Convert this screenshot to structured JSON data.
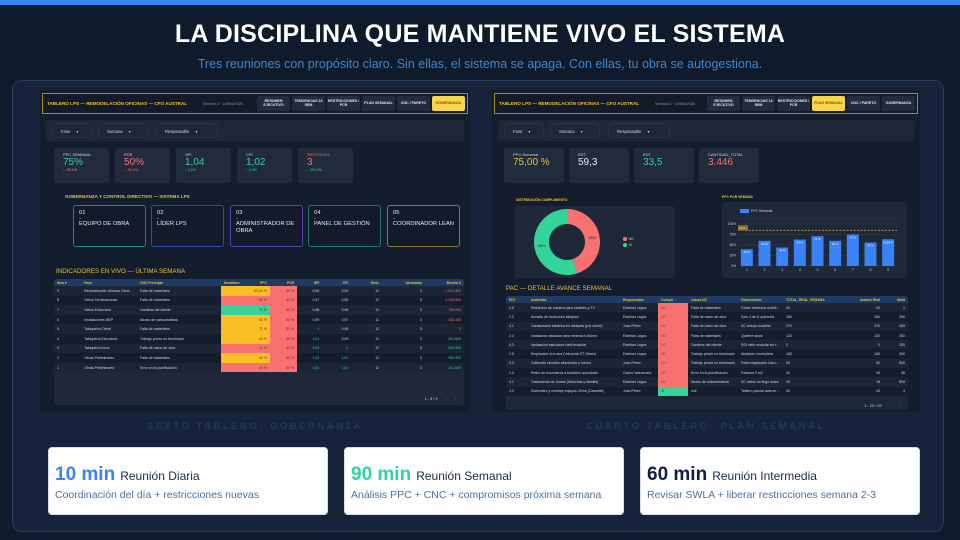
{
  "colors": {
    "accent": "#3b82f6",
    "gold": "#e8c33a",
    "green": "#34d399",
    "red": "#f87171",
    "yellow": "#fbbf24",
    "navy": "#0f1f45"
  },
  "header": {
    "title": "LA DISCIPLINA QUE MANTIENE VIVO EL SISTEMA",
    "subtitle": "Tres reuniones con propósito claro. Sin ellas, el sistema se apaga. Con ellas, tu obra se autogestiona."
  },
  "left": {
    "caption": "SEXTO TABLERO: GOBERNANZA",
    "app_title": "TABLERO LPS — REMODELACIÓN OFICINAS — CFO AUSTRAL",
    "date": "Semana 3 · 16/Mar/2026",
    "tabs": [
      "RESUMEN EJECUTIVO",
      "TENDENCIAS 16 SEM",
      "RESTRICCIONES / PCR",
      "PLAN SEMANAL",
      "CNC / PARETO",
      "GOBERNANZA"
    ],
    "active_tab": 5,
    "filters": [
      "Fase",
      "Semana",
      "Responsable"
    ],
    "kpis": [
      {
        "label": "PPC SEMANAL",
        "value": "75%",
        "delta": "↓ -89.6%",
        "color": "#34d399",
        "dcolor": "#f87171"
      },
      {
        "label": "PCR",
        "value": "50%",
        "delta": "↓ -50.0%",
        "color": "#f87171",
        "dcolor": "#f87171"
      },
      {
        "label": "SPI",
        "value": "1,04",
        "delta": "↑ 4.0%",
        "color": "#34d399",
        "dcolor": "#34d399"
      },
      {
        "label": "CPI",
        "value": "1,02",
        "delta": "↑ 2.0%",
        "color": "#34d399",
        "dcolor": "#34d399"
      },
      {
        "label": "REST.ROJO",
        "value": "3",
        "delta": "↑ 200.0%",
        "color": "#f87171",
        "dcolor": "#34d399"
      }
    ],
    "gov_title": "GOBERNANZA Y CONTROL DIRECTIVO — SISTEMA LPS",
    "gov_boxes": [
      {
        "num": "01",
        "dash": "-",
        "label": "EQUIPO DE OBRA",
        "color": "#1f8a6e"
      },
      {
        "num": "02",
        "dash": "-",
        "label": "LÍDER LPS",
        "color": "#2a4da8"
      },
      {
        "num": "03",
        "dash": "-",
        "label": "ADMINISTRADOR DE OBRA",
        "color": "#5b3fa8"
      },
      {
        "num": "04",
        "dash": "-",
        "label": "PANEL DE GESTIÓN",
        "color": "#1f7a6a"
      },
      {
        "num": "05",
        "dash": "-",
        "label": "COORDINADOR LEAN",
        "color": "#8a7a3a"
      }
    ],
    "table_title": "INDICADORES EN VIVO — ÚLTIMA SEMANA",
    "columns": [
      "Item ▾",
      "Fase",
      "CNC Principal",
      "Semáforo",
      "PPC",
      "PCR",
      "SPI",
      "CPI",
      "Rest.",
      "Atrasadas",
      "Brecha $"
    ],
    "rows": [
      [
        "9",
        "Remodelación Oficinas Centr...",
        "Falta de materiales",
        "yellow",
        "63,64 %",
        "50 %",
        "0,96",
        "0,94",
        "12",
        "3",
        "-1.814.400"
      ],
      [
        "8",
        "Cielos Terminaciones",
        "Falta de materiales",
        "red",
        "56 %",
        "50 %",
        "0,97",
        "0,95",
        "12",
        "3",
        "-1.209.600"
      ],
      [
        "7",
        "Cielos Estructura",
        "Cambios del cliente",
        "green",
        "75 %",
        "50 %",
        "0,98",
        "0,96",
        "12",
        "3",
        "-705.600"
      ],
      [
        "6",
        "Instalaciones MEP",
        "Atraso de subcontratista",
        "yellow",
        "60 %",
        "50 %",
        "0,99",
        "0,97",
        "12",
        "3",
        "-302.400"
      ],
      [
        "5",
        "Tabiquería Cierre",
        "Falta de materiales",
        "yellow",
        "71 %",
        "50 %",
        "1",
        "0,98",
        "12",
        "3",
        "0"
      ],
      [
        "4",
        "Tabiquería Estructura",
        "Trabajo previo no terminado",
        "yellow",
        "63 %",
        "50 %",
        "1,01",
        "0,99",
        "12",
        "3",
        "201.600"
      ],
      [
        "3",
        "Tabiquería Inicio",
        "Falta de mano de obra",
        "red",
        "44 %",
        "50 %",
        "1,02",
        "1",
        "12",
        "3",
        "302.400"
      ],
      [
        "2",
        "Obras Preliminares",
        "Falta de materiales",
        "yellow",
        "60 %",
        "50 %",
        "1,03",
        "1,01",
        "12",
        "3",
        "302.400"
      ],
      [
        "1",
        "Obras Preliminares",
        "Error en la planificación",
        "red",
        "40 %",
        "50 %",
        "1,04",
        "1,02",
        "12",
        "3",
        "201.600"
      ]
    ],
    "pagination": "1 - 9 / 9"
  },
  "right": {
    "caption": "CUARTO TABLERO: PLAN SEMANAL",
    "app_title": "TABLERO LPS — REMODELACIÓN OFICINAS — CFO AUSTRAL",
    "date": "Semana 3 · 16/Mar/2026",
    "tabs": [
      "RESUMEN EJECUTIVO",
      "TENDENCIAS 16 SEM",
      "RESTRICCIONES / PCR",
      "PLAN SEMANAL",
      "CNC / PARETO",
      "GOBERNANZA"
    ],
    "active_tab": 3,
    "filters": [
      "Fase",
      "Semana",
      "Responsable"
    ],
    "kpis": [
      {
        "label": "PPC Semanal",
        "value": "75,00 %",
        "color": "#e8c33a"
      },
      {
        "label": "EDT",
        "value": "59,3",
        "color": "#e6eaf2"
      },
      {
        "label": "EDT",
        "value": "33,5",
        "color": "#34d399"
      },
      {
        "label": "CANTIDAD_TOTAL",
        "value": "3.446",
        "color": "#f87171"
      }
    ],
    "donut": {
      "title": "DISTRIBUCIÓN CUMPLIMIENTO",
      "slices": [
        {
          "label": "NO",
          "value": 45,
          "text": "45%",
          "color": "#f87171"
        },
        {
          "label": "SI",
          "value": 55,
          "text": "55%",
          "color": "#34d399"
        }
      ]
    },
    "bar_chart": {
      "title": "PPC POR SEMANA",
      "legend": "PPC Semanal",
      "categories": [
        "1",
        "2",
        "3",
        "4",
        "5",
        "6",
        "7",
        "8",
        "9"
      ],
      "values": [
        40,
        60,
        44,
        63,
        71,
        60,
        75,
        56,
        63.64
      ],
      "labels": [
        "40 %",
        "60 %",
        "44 %",
        "63 %",
        "71 %",
        "60 %",
        "75 %",
        "56 %",
        "63,64 %"
      ],
      "yticks": [
        "0%",
        "25%",
        "50%",
        "75%",
        "100%"
      ],
      "ylim": [
        0,
        100
      ],
      "target_label": "Meta",
      "target": 85
    },
    "table_title": "PAC — DETALLE AVANCE SEMANAL",
    "columns": [
      "EDT",
      "Actividad",
      "Responsable",
      "Cumple ↑",
      "Causa NC",
      "Observación",
      "TOTAL_REAL_SEMANA",
      "Avance Real",
      "Meta"
    ],
    "rows": [
      [
        "2.6",
        "Refuerzos de madera para muebles y TV",
        "Esteban Lagos",
        "NO",
        "Falta de materiales",
        "Faltan refuerzos mobili...",
        "20",
        "20",
        "1"
      ],
      [
        "2.2",
        "Armado de estructura tabiques",
        "Esteban Lagos",
        "NO",
        "Falta de mano de obra",
        "Solo 4 de 6 operarios",
        "160",
        "160",
        "350"
      ],
      [
        "3.1",
        "Canalización eléctrica en tabiques (pre-cierre)",
        "Juan Pérez",
        "NO",
        "Falta de mano de obra",
        "SC redujo cuadrilla",
        "270",
        "270",
        "450"
      ],
      [
        "2.4",
        "Instalación aislación lana mineral e=50mm",
        "Esteban Lagos",
        "NO",
        "Falta de materiales",
        "Quiebre stock",
        "130",
        "130",
        "350"
      ],
      [
        "4.3",
        "Instalación estructura cielo modular",
        "Esteban Lagos",
        "NO",
        "Cambios del cliente",
        "RDI cielo modular sin r...",
        "0",
        "0",
        "250"
      ],
      [
        "2.5",
        "Emplacado 1ra cara (Volcanita ST 15mm)",
        "Esteban Lagos",
        "NO",
        "Trabajo previo no terminado",
        "Aislación incompleta",
        "165",
        "165",
        "350"
      ],
      [
        "3.2",
        "Cableado circuitos alumbrado y fuerza",
        "Juan Pérez",
        "NO",
        "Trabajo previo no terminado",
        "Falta emplacado 2da c...",
        "60",
        "60",
        "800"
      ],
      [
        "1.4",
        "Retiro de escombros a botadero autorizado",
        "Carlos Valenzuela",
        "NO",
        "Error en la planificación",
        "Faltaron 5 m3",
        "40",
        "40",
        "45"
      ],
      [
        "4.1",
        "Tratamiento de Juntas (Huinchas y Masilla)",
        "Esteban Lagos",
        "NO",
        "Atraso de subcontratista",
        "SC cielos no llegó lunes",
        "15",
        "15",
        "850"
      ],
      [
        "3.3",
        "Suministro y montaje equipos Clima (Cassette)",
        "Juan Pérez",
        "SI",
        "null",
        "Tablero parcial avance ...",
        "40",
        "40",
        "4"
      ]
    ],
    "pagination": "1 - 20 / 29"
  },
  "cards": [
    {
      "time": "10 min",
      "name": "Reunión Diaria",
      "desc": "Coordinación del día + restricciones nuevas",
      "color": "#3b82f6"
    },
    {
      "time": "90 min",
      "name": "Reunión Semanal",
      "desc": "Análisis PPC + CNC + compromisos próxima semana",
      "color": "#34d399"
    },
    {
      "time": "60 min",
      "name": "Reunión Intermedia",
      "desc": "Revisar SWLA + liberar restricciones semana 2-3",
      "color": "#0f1f45"
    }
  ]
}
